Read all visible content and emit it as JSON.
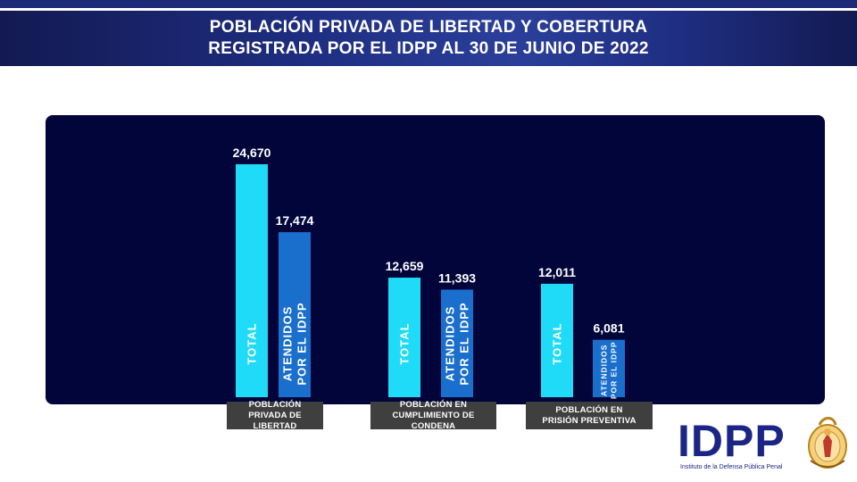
{
  "header": {
    "title_line1": "POBLACIÓN PRIVADA DE LIBERTAD Y COBERTURA",
    "title_line2": "REGISTRADA POR EL IDPP AL 30 DE JUNIO DE 2022"
  },
  "colors": {
    "total_bar": "#20dbf7",
    "atendidos_bar": "#1a6fcc",
    "panel": "#02053a",
    "category_box": "#3f3f3f",
    "brand_blue": "#1b2585"
  },
  "chart_data": {
    "type": "bar",
    "title": "POBLACIÓN PRIVADA DE LIBERTAD Y COBERTURA REGISTRADA POR EL IDPP AL 30 DE JUNIO DE 2022",
    "categories": [
      "POBLACIÓN PRIVADA DE LIBERTAD",
      "POBLACIÓN EN CUMPLIMIENTO DE CONDENA",
      "POBLACIÓN EN PRISIÓN PREVENTIVA"
    ],
    "category_lines": [
      [
        "POBLACIÓN PRIVADA DE",
        "LIBERTAD"
      ],
      [
        "POBLACIÓN EN",
        "CUMPLIMIENTO DE CONDENA"
      ],
      [
        "POBLACIÓN EN",
        "PRISIÓN PREVENTIVA"
      ]
    ],
    "series": [
      {
        "name": "TOTAL",
        "label_lines": [
          "TOTAL"
        ],
        "values": [
          24670,
          12659,
          12011
        ],
        "value_labels": [
          "24,670",
          "12,659",
          "12,011"
        ]
      },
      {
        "name": "ATENDIDOS POR EL IDPP",
        "label_lines": [
          "ATENDIDOS",
          "POR EL IDPP"
        ],
        "values": [
          17474,
          11393,
          6081
        ],
        "value_labels": [
          "17,474",
          "11,393",
          "6,081"
        ]
      }
    ],
    "ylim": [
      0,
      24670
    ],
    "grid": false,
    "legend": "none",
    "xlabel": "",
    "ylabel": ""
  },
  "logo": {
    "wordmark": "IDPP",
    "subtitle": "Instituto de la Defensa Pública Penal"
  }
}
